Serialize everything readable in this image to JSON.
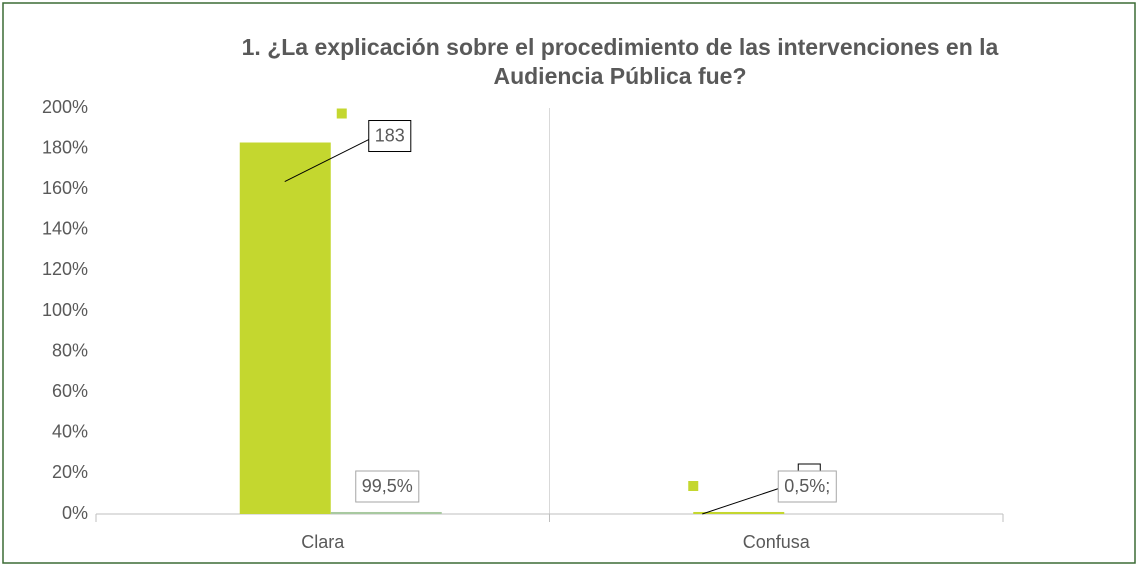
{
  "chart_data": {
    "type": "bar",
    "title": "1. ¿La explicación sobre el procedimiento de las intervenciones en la Audiencia Pública fue?",
    "categories": [
      "Clara",
      "Confusa"
    ],
    "series": [
      {
        "color": "#c4d72f",
        "values": [
          183,
          1
        ]
      },
      {
        "color": "#a8c9a0",
        "values": [
          0.995,
          0.005
        ],
        "value_labels": [
          "99,5%",
          "0,5%;"
        ]
      }
    ],
    "ylim": [
      0,
      200
    ],
    "yticks": [
      {
        "value": 0,
        "label": "0%"
      },
      {
        "value": 20,
        "label": "20%"
      },
      {
        "value": 40,
        "label": "40%"
      },
      {
        "value": 60,
        "label": "60%"
      },
      {
        "value": 80,
        "label": "80%"
      },
      {
        "value": 100,
        "label": "100%"
      },
      {
        "value": 120,
        "label": "120%"
      },
      {
        "value": 140,
        "label": "140%"
      },
      {
        "value": 160,
        "label": "160%"
      },
      {
        "value": 180,
        "label": "180%"
      },
      {
        "value": 200,
        "label": "200%"
      }
    ],
    "grid": false
  }
}
